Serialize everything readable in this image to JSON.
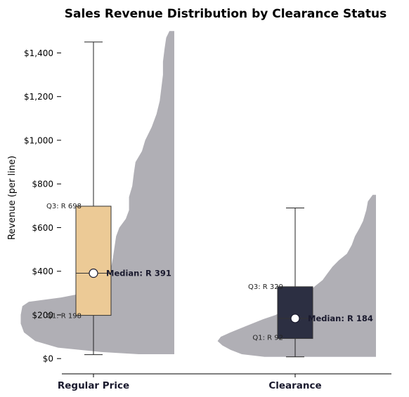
{
  "chart_data": {
    "type": "box-violin",
    "title": "Sales Revenue Distribution by Clearance Status",
    "xlabel": "",
    "ylabel": "Revenue (per line)",
    "ylim": [
      -70,
      1530
    ],
    "yticks": [
      {
        "value": 0,
        "label": "$0"
      },
      {
        "value": 200,
        "label": "$200"
      },
      {
        "value": 400,
        "label": "$400"
      },
      {
        "value": 600,
        "label": "$600"
      },
      {
        "value": 800,
        "label": "$800"
      },
      {
        "value": 1000,
        "label": "$1,000"
      },
      {
        "value": 1200,
        "label": "$1,200"
      },
      {
        "value": 1400,
        "label": "$1,400"
      }
    ],
    "grid": false,
    "colors": {
      "violin": "#b0afb5",
      "median_marker": "#ffffff",
      "axis": "#000000"
    },
    "series": [
      {
        "name": "Regular Price",
        "box_color": "#ecca96",
        "whisker_low": 18,
        "q1": 198,
        "median": 391,
        "q3": 698,
        "whisker_high": 1450,
        "q1_label": "Q1: R 198",
        "median_label": "Median: R 391",
        "q3_label": "Q3: R 698",
        "density": [
          [
            20,
            0.22
          ],
          [
            30,
            0.45
          ],
          [
            50,
            0.72
          ],
          [
            80,
            0.86
          ],
          [
            120,
            0.93
          ],
          [
            160,
            0.95
          ],
          [
            200,
            0.95
          ],
          [
            240,
            0.94
          ],
          [
            260,
            0.9
          ],
          [
            280,
            0.7
          ],
          [
            320,
            0.42
          ],
          [
            380,
            0.4
          ],
          [
            460,
            0.38
          ],
          [
            560,
            0.36
          ],
          [
            600,
            0.34
          ],
          [
            640,
            0.3
          ],
          [
            680,
            0.28
          ],
          [
            740,
            0.28
          ],
          [
            790,
            0.26
          ],
          [
            850,
            0.25
          ],
          [
            900,
            0.24
          ],
          [
            950,
            0.2
          ],
          [
            1000,
            0.18
          ],
          [
            1060,
            0.14
          ],
          [
            1120,
            0.11
          ],
          [
            1180,
            0.09
          ],
          [
            1240,
            0.08
          ],
          [
            1300,
            0.07
          ],
          [
            1360,
            0.07
          ],
          [
            1420,
            0.06
          ],
          [
            1470,
            0.05
          ],
          [
            1500,
            0.03
          ]
        ]
      },
      {
        "name": "Clearance",
        "box_color": "#2c2f42",
        "whisker_low": 8,
        "q1": 92,
        "median": 184,
        "q3": 329,
        "whisker_high": 690,
        "q1_label": "Q1: R 92",
        "median_label": "Median: R 184",
        "q3_label": "Q3: R 329",
        "density": [
          [
            8,
            0.69
          ],
          [
            20,
            0.83
          ],
          [
            40,
            0.9
          ],
          [
            60,
            0.95
          ],
          [
            80,
            0.98
          ],
          [
            100,
            0.96
          ],
          [
            120,
            0.9
          ],
          [
            150,
            0.8
          ],
          [
            180,
            0.7
          ],
          [
            200,
            0.62
          ],
          [
            230,
            0.55
          ],
          [
            260,
            0.48
          ],
          [
            300,
            0.42
          ],
          [
            330,
            0.38
          ],
          [
            360,
            0.33
          ],
          [
            390,
            0.3
          ],
          [
            420,
            0.27
          ],
          [
            450,
            0.23
          ],
          [
            480,
            0.18
          ],
          [
            520,
            0.15
          ],
          [
            560,
            0.13
          ],
          [
            600,
            0.1
          ],
          [
            630,
            0.08
          ],
          [
            680,
            0.06
          ],
          [
            720,
            0.05
          ],
          [
            750,
            0.02
          ]
        ]
      }
    ]
  }
}
